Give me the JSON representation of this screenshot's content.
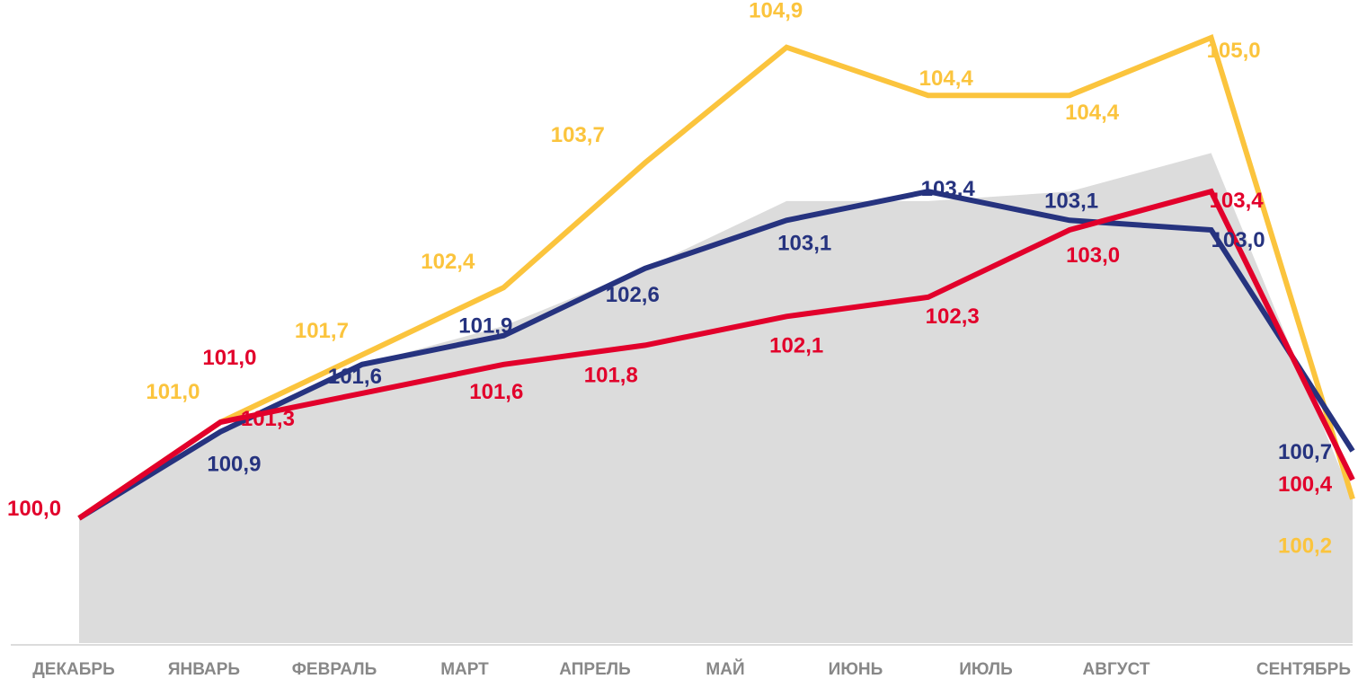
{
  "chart_data": {
    "type": "line",
    "title": "",
    "xlabel": "",
    "ylabel": "",
    "categories": [
      "ДЕКАБРЬ",
      "ЯНВАРЬ",
      "ФЕВРАЛЬ",
      "МАРТ",
      "АПРЕЛЬ",
      "МАЙ",
      "ИЮНЬ",
      "ИЮЛЬ",
      "АВГУСТ",
      "СЕНТЯБРЬ"
    ],
    "ylim": [
      99.0,
      105.2
    ],
    "grid": false,
    "legend": "none",
    "area": {
      "color": "#dcdcdc",
      "values": [
        100.0,
        100.9,
        101.6,
        102.0,
        102.6,
        103.3,
        103.3,
        103.4,
        103.8,
        100.2
      ]
    },
    "series": [
      {
        "color": "#fbc43d",
        "values": [
          100.0,
          101.0,
          101.7,
          102.4,
          103.7,
          104.9,
          104.4,
          104.4,
          105.0,
          100.2
        ],
        "labels": [
          "",
          "101,0",
          "101,7",
          "102,4",
          "103,7",
          "104,9",
          "104,4",
          "104,4",
          "105,0",
          "100,2"
        ]
      },
      {
        "color": "#26337f",
        "values": [
          100.0,
          100.9,
          101.6,
          101.9,
          102.6,
          103.1,
          103.4,
          103.1,
          103.0,
          100.7
        ],
        "labels": [
          "",
          "100,9",
          "101,6",
          "101,9",
          "102,6",
          "103,1",
          "103,4",
          "103,1",
          "103,0",
          "100,7"
        ]
      },
      {
        "color": "#e2002b",
        "values": [
          100.0,
          101.0,
          101.3,
          101.6,
          101.8,
          102.1,
          102.3,
          103.0,
          103.4,
          100.4
        ],
        "labels": [
          "100,0",
          "101,0",
          "101,3",
          "101,6",
          "101,8",
          "102,1",
          "102,3",
          "103,0",
          "103,4",
          "100,4"
        ]
      }
    ]
  }
}
